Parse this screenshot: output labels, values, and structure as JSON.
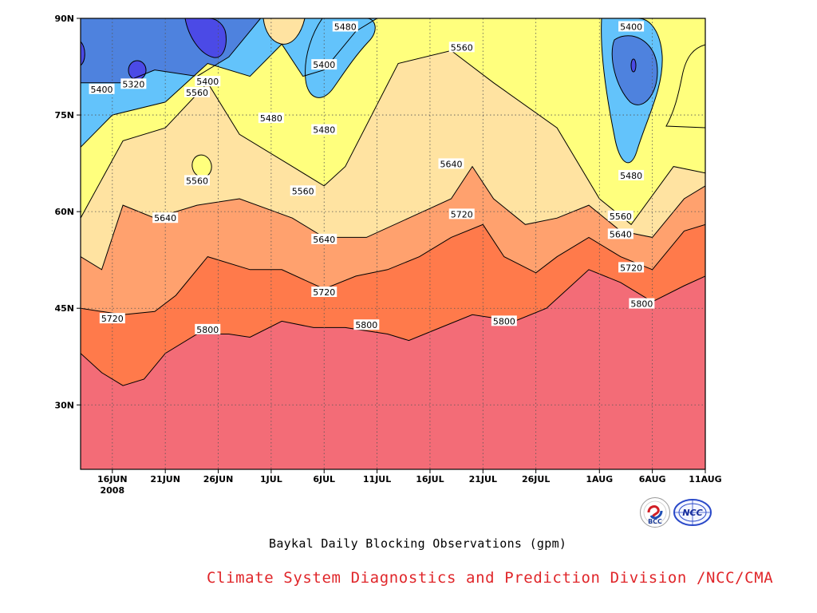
{
  "chart_data": {
    "type": "contour",
    "title": "",
    "subtitle": "Baykal Daily Blocking Observations (gpm)",
    "xlabel": "",
    "ylabel": "",
    "x_tick_labels": [
      "16JUN",
      "21JUN",
      "26JUN",
      "1JUL",
      "6JUL",
      "11JUL",
      "16JUL",
      "21JUL",
      "26JUL",
      "1AUG",
      "6AUG",
      "11AUG"
    ],
    "x_year_label": "2008",
    "y_tick_labels": [
      "90N",
      "75N",
      "60N",
      "45N",
      "30N"
    ],
    "xlim": [
      "2008-06-13",
      "2008-08-11"
    ],
    "ylim": [
      20,
      90
    ],
    "grid": true,
    "contour_levels": [
      5320,
      5400,
      5480,
      5560,
      5640,
      5720,
      5800
    ],
    "band_colors": {
      "above_5320": "#4b4ae6",
      "5320_5400": "#4e82de",
      "5400_5480": "#63c3fb",
      "5480_5560": "#ffff7d",
      "5560_5640": "#ffe3a1",
      "5640_5720": "#ffa16e",
      "5720_5800": "#ff7a4b",
      "below_5800": "#f36c77"
    },
    "contours": [
      {
        "level": 5800,
        "latitude_points": [
          [
            "2008-06-13",
            38
          ],
          [
            "2008-06-15",
            35
          ],
          [
            "2008-06-17",
            33
          ],
          [
            "2008-06-19",
            34
          ],
          [
            "2008-06-21",
            38
          ],
          [
            "2008-06-24",
            41
          ],
          [
            "2008-06-27",
            41
          ],
          [
            "2008-06-29",
            40.5
          ],
          [
            "2008-07-02",
            43
          ],
          [
            "2008-07-05",
            42
          ],
          [
            "2008-07-08",
            42
          ],
          [
            "2008-07-12",
            41
          ],
          [
            "2008-07-14",
            40
          ],
          [
            "2008-07-17",
            42
          ],
          [
            "2008-07-20",
            44
          ],
          [
            "2008-07-24",
            43
          ],
          [
            "2008-07-27",
            45
          ],
          [
            "2008-07-29",
            48
          ],
          [
            "2008-07-31",
            51
          ],
          [
            "2008-08-03",
            49
          ],
          [
            "2008-08-06",
            46
          ],
          [
            "2008-08-09",
            48.5
          ],
          [
            "2008-08-11",
            50
          ]
        ]
      },
      {
        "level": 5720,
        "latitude_points": [
          [
            "2008-06-13",
            45
          ],
          [
            "2008-06-17",
            44
          ],
          [
            "2008-06-20",
            44.5
          ],
          [
            "2008-06-22",
            47
          ],
          [
            "2008-06-25",
            53
          ],
          [
            "2008-06-29",
            51
          ],
          [
            "2008-07-02",
            51
          ],
          [
            "2008-07-06",
            48
          ],
          [
            "2008-07-09",
            50
          ],
          [
            "2008-07-12",
            51
          ],
          [
            "2008-07-15",
            53
          ],
          [
            "2008-07-18",
            56
          ],
          [
            "2008-07-21",
            58
          ],
          [
            "2008-07-23",
            53
          ],
          [
            "2008-07-26",
            50.5
          ],
          [
            "2008-07-28",
            53
          ],
          [
            "2008-07-31",
            56
          ],
          [
            "2008-08-03",
            53
          ],
          [
            "2008-08-06",
            51
          ],
          [
            "2008-08-09",
            57
          ],
          [
            "2008-08-11",
            58
          ]
        ]
      },
      {
        "level": 5640,
        "latitude_points": [
          [
            "2008-06-13",
            53
          ],
          [
            "2008-06-15",
            51
          ],
          [
            "2008-06-17",
            61
          ],
          [
            "2008-06-20",
            59
          ],
          [
            "2008-06-24",
            61
          ],
          [
            "2008-06-28",
            62
          ],
          [
            "2008-07-03",
            59
          ],
          [
            "2008-07-06",
            56
          ],
          [
            "2008-07-10",
            56
          ],
          [
            "2008-07-14",
            59
          ],
          [
            "2008-07-18",
            62
          ],
          [
            "2008-07-20",
            67
          ],
          [
            "2008-07-22",
            62
          ],
          [
            "2008-07-25",
            58
          ],
          [
            "2008-07-28",
            59
          ],
          [
            "2008-07-31",
            61
          ],
          [
            "2008-08-03",
            57
          ],
          [
            "2008-08-06",
            56
          ],
          [
            "2008-08-09",
            62
          ],
          [
            "2008-08-11",
            64
          ]
        ]
      },
      {
        "level": 5560,
        "latitude_points": [
          [
            "2008-06-13",
            59
          ],
          [
            "2008-06-17",
            71
          ],
          [
            "2008-06-21",
            73
          ],
          [
            "2008-06-25",
            80
          ],
          [
            "2008-06-28",
            72
          ],
          [
            "2008-07-03",
            67
          ],
          [
            "2008-07-06",
            64
          ],
          [
            "2008-07-08",
            67
          ],
          [
            "2008-07-13",
            83
          ],
          [
            "2008-07-18",
            85
          ],
          [
            "2008-07-22",
            80
          ],
          [
            "2008-07-28",
            73
          ],
          [
            "2008-08-01",
            62
          ],
          [
            "2008-08-04",
            58
          ],
          [
            "2008-08-08",
            67
          ],
          [
            "2008-08-11",
            66
          ]
        ]
      },
      {
        "level": 5480,
        "latitude_points": [
          [
            "2008-06-13",
            70
          ],
          [
            "2008-06-16",
            75
          ],
          [
            "2008-06-21",
            77
          ],
          [
            "2008-06-25",
            83
          ],
          [
            "2008-06-29",
            81
          ],
          [
            "2008-07-02",
            86
          ],
          [
            "2008-07-04",
            81
          ],
          [
            "2008-07-06",
            82
          ],
          [
            "2008-07-09",
            88
          ],
          [
            "2008-07-11",
            90
          ]
        ]
      },
      {
        "level": 5400,
        "latitude_points": [
          [
            "2008-06-13",
            80
          ],
          [
            "2008-06-17",
            80
          ],
          [
            "2008-06-20",
            82
          ],
          [
            "2008-06-24",
            81
          ],
          [
            "2008-06-27",
            84
          ],
          [
            "2008-06-30",
            90
          ]
        ]
      }
    ],
    "contour_labels": [
      {
        "text": "5480",
        "date": "2008-07-08",
        "lat": 88.7
      },
      {
        "text": "5400",
        "date": "2008-08-04",
        "lat": 88.7
      },
      {
        "text": "5560",
        "date": "2008-07-19",
        "lat": 85.5
      },
      {
        "text": "5400",
        "date": "2008-07-06",
        "lat": 82.8
      },
      {
        "text": "5400",
        "date": "2008-06-25",
        "lat": 80.2
      },
      {
        "text": "5320",
        "date": "2008-06-18",
        "lat": 79.8
      },
      {
        "text": "5400",
        "date": "2008-06-15",
        "lat": 79.0
      },
      {
        "text": "5560",
        "date": "2008-06-24",
        "lat": 78.5
      },
      {
        "text": "5480",
        "date": "2008-07-01",
        "lat": 74.5
      },
      {
        "text": "5480",
        "date": "2008-07-06",
        "lat": 72.7
      },
      {
        "text": "5640",
        "date": "2008-07-18",
        "lat": 67.4
      },
      {
        "text": "5560",
        "date": "2008-06-24",
        "lat": 64.8
      },
      {
        "text": "5480",
        "date": "2008-08-04",
        "lat": 65.6
      },
      {
        "text": "5560",
        "date": "2008-07-04",
        "lat": 63.2
      },
      {
        "text": "5720",
        "date": "2008-07-19",
        "lat": 59.6
      },
      {
        "text": "5560",
        "date": "2008-08-03",
        "lat": 59.3
      },
      {
        "text": "5640",
        "date": "2008-06-21",
        "lat": 59.0
      },
      {
        "text": "5640",
        "date": "2008-08-03",
        "lat": 56.5
      },
      {
        "text": "5640",
        "date": "2008-07-06",
        "lat": 55.7
      },
      {
        "text": "5720",
        "date": "2008-08-04",
        "lat": 51.3
      },
      {
        "text": "5720",
        "date": "2008-07-06",
        "lat": 47.5
      },
      {
        "text": "5800",
        "date": "2008-08-05",
        "lat": 45.7
      },
      {
        "text": "5720",
        "date": "2008-06-16",
        "lat": 43.4
      },
      {
        "text": "5800",
        "date": "2008-07-23",
        "lat": 43.0
      },
      {
        "text": "5800",
        "date": "2008-07-10",
        "lat": 42.4
      },
      {
        "text": "5800",
        "date": "2008-06-25",
        "lat": 41.7
      }
    ]
  },
  "footer": {
    "subtitle": "Baykal Daily Blocking Observations (gpm)",
    "credit": "Climate System Diagnostics and Prediction Division /NCC/CMA",
    "logo_left_text": "BCC",
    "logo_right_text": "NCC"
  }
}
